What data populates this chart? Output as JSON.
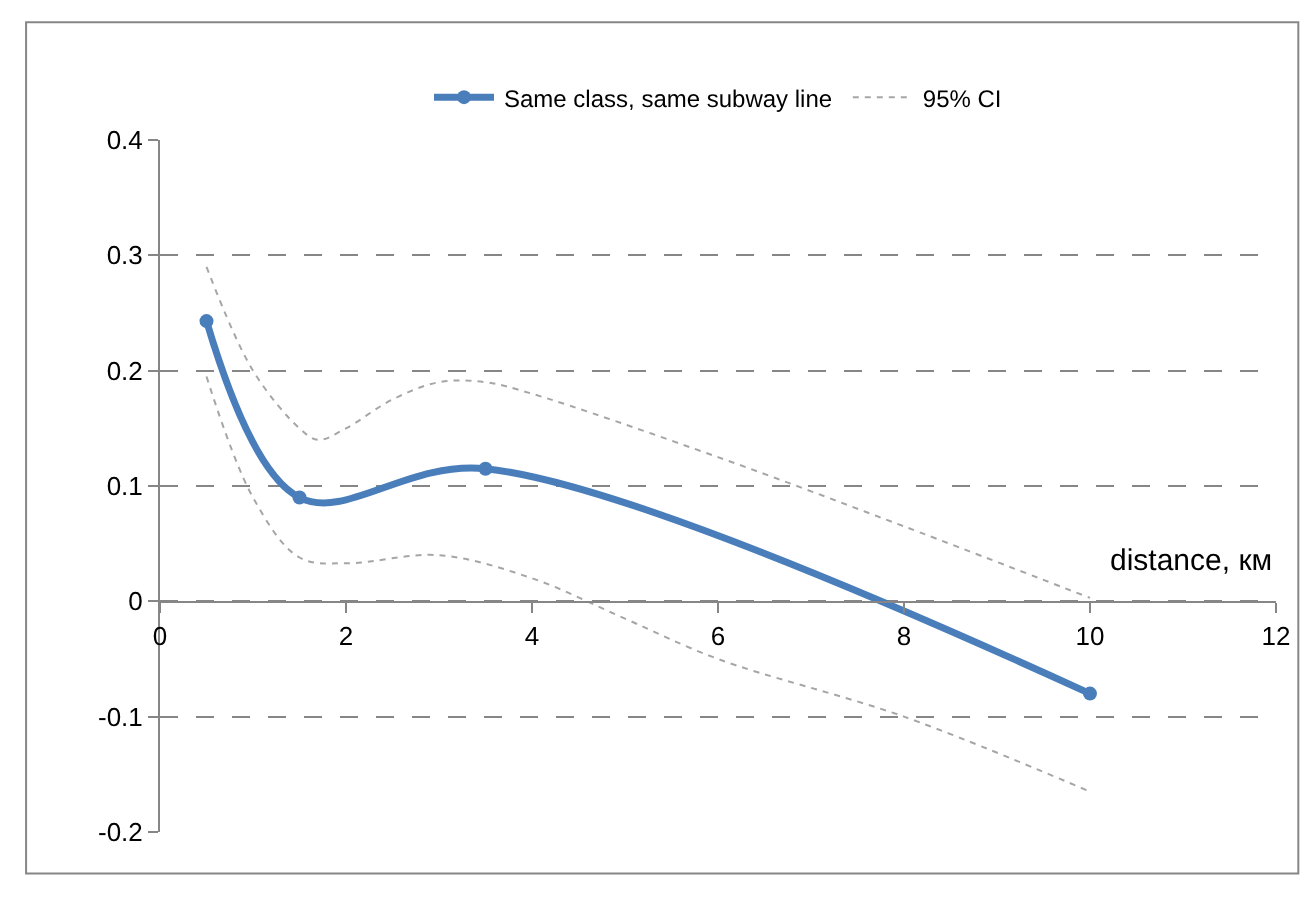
{
  "chart_data": {
    "type": "line",
    "xlabel": "distance, км",
    "series": [
      {
        "name": "Same class, same subway line",
        "color": "#4a7ebb",
        "x": [
          0.5,
          1.5,
          3.5,
          10
        ],
        "values": [
          0.243,
          0.09,
          0.115,
          -0.08
        ],
        "marker": "circle",
        "line_style": "solid"
      },
      {
        "name": "95% CI",
        "color": "#a6a6a6",
        "x": [
          0.5,
          1.0,
          1.5,
          1.7,
          2.0,
          2.5,
          3.0,
          3.5,
          4.0,
          6.0,
          8.0,
          10.0
        ],
        "values": [
          0.29,
          0.2,
          0.15,
          0.14,
          0.15,
          0.175,
          0.19,
          0.19,
          0.18,
          0.125,
          0.065,
          0.003
        ],
        "marker": "none",
        "line_style": "dotted"
      },
      {
        "color": "#a6a6a6",
        "x": [
          0.5,
          1.0,
          1.5,
          2.0,
          3.0,
          4.0,
          5.0,
          6.0,
          8.0,
          10.0
        ],
        "values": [
          0.195,
          0.09,
          0.038,
          0.033,
          0.04,
          0.02,
          -0.015,
          -0.05,
          -0.1,
          -0.165
        ],
        "marker": "none",
        "line_style": "dotted"
      }
    ],
    "xlim": [
      0,
      12
    ],
    "xticks": [
      0,
      2,
      4,
      6,
      8,
      10,
      12
    ],
    "ylim": [
      -0.2,
      0.4
    ],
    "yticks": [
      -0.2,
      -0.1,
      0,
      0.1,
      0.2,
      0.3,
      0.4
    ],
    "grid": "y",
    "legend": "top"
  }
}
